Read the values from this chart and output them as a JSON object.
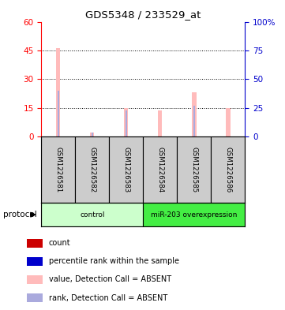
{
  "title": "GDS5348 / 233529_at",
  "samples": [
    "GSM1226581",
    "GSM1226582",
    "GSM1226583",
    "GSM1226584",
    "GSM1226585",
    "GSM1226586"
  ],
  "pink_bar_values": [
    46,
    2,
    15,
    13.5,
    23,
    15
  ],
  "blue_bar_values": [
    24,
    2,
    13.5,
    0,
    16,
    0
  ],
  "left_ylim": [
    0,
    60
  ],
  "right_ylim": [
    0,
    100
  ],
  "left_yticks": [
    0,
    15,
    30,
    45,
    60
  ],
  "right_yticks": [
    0,
    25,
    50,
    75,
    100
  ],
  "right_yticklabels": [
    "0",
    "25",
    "50",
    "75",
    "100%"
  ],
  "left_ycolor": "#ff0000",
  "right_ycolor": "#0000cc",
  "pink_color": "#ffbbbb",
  "blue_color": "#aaaadd",
  "protocol_groups": [
    {
      "label": "control",
      "start": 0,
      "end": 3,
      "color": "#ccffcc"
    },
    {
      "label": "miR-203 overexpression",
      "start": 3,
      "end": 6,
      "color": "#44ee44"
    }
  ],
  "sample_box_color": "#cccccc",
  "dotted_grid_values": [
    15,
    30,
    45
  ],
  "pink_bar_width": 0.12,
  "blue_bar_width": 0.05,
  "legend_items": [
    {
      "color": "#cc0000",
      "label": "count",
      "marker": "s"
    },
    {
      "color": "#0000cc",
      "label": "percentile rank within the sample",
      "marker": "s"
    },
    {
      "color": "#ffbbbb",
      "label": "value, Detection Call = ABSENT",
      "marker": "s"
    },
    {
      "color": "#aaaadd",
      "label": "rank, Detection Call = ABSENT",
      "marker": "s"
    }
  ]
}
